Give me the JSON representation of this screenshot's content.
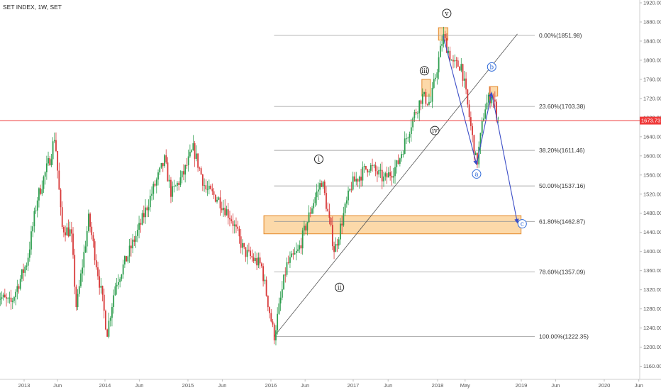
{
  "header": {
    "title": "SET INDEX, 1W, SET"
  },
  "price_tag": {
    "value": "1673.73",
    "color": "#ef3b3b"
  },
  "colors": {
    "up": "#2e9e4f",
    "down": "#d83a3a",
    "fib": "#9a9a9a",
    "trend": "#3d4fc7",
    "zone_fill": "#fbd29a",
    "zone_stroke": "#e48a2c"
  },
  "chart_data": {
    "type": "candlestick",
    "title": "SET INDEX, 1W, SET",
    "ylim": [
      1140,
      1930
    ],
    "y_ticks": [
      1160,
      1200,
      1240,
      1280,
      1320,
      1360,
      1400,
      1440,
      1480,
      1520,
      1560,
      1600,
      1640,
      1680,
      1720,
      1760,
      1800,
      1840,
      1880,
      1920
    ],
    "y_tick_labels": [
      "1160.00",
      "1200.00",
      "1240.00",
      "1280.00",
      "1320.00",
      "1360.00",
      "1400.00",
      "1440.00",
      "1480.00",
      "1520.00",
      "1560.00",
      "1600.00",
      "1640.00",
      "1680.00",
      "1720.00",
      "1760.00",
      "1800.00",
      "1840.00",
      "1880.00",
      "1920.00"
    ],
    "x_ticks": [
      {
        "label": "2013",
        "date": "2013-01-01"
      },
      {
        "label": "Jun",
        "date": "2013-06-01"
      },
      {
        "label": "2014",
        "date": "2014-01-01"
      },
      {
        "label": "Jun",
        "date": "2014-06-01"
      },
      {
        "label": "2015",
        "date": "2015-01-01"
      },
      {
        "label": "Jun",
        "date": "2015-06-01"
      },
      {
        "label": "2016",
        "date": "2016-01-01"
      },
      {
        "label": "Jun",
        "date": "2016-06-01"
      },
      {
        "label": "2017",
        "date": "2017-01-01"
      },
      {
        "label": "Jun",
        "date": "2017-06-01"
      },
      {
        "label": "2018",
        "date": "2018-01-01"
      },
      {
        "label": "May",
        "date": "2018-05-01"
      },
      {
        "label": "2019",
        "date": "2019-01-01"
      },
      {
        "label": "Jun",
        "date": "2019-06-01"
      },
      {
        "label": "2020",
        "date": "2020-01-01"
      },
      {
        "label": "Jun",
        "date": "2020-06-01"
      }
    ],
    "price_path": [
      [
        "2012-09-01",
        1310
      ],
      [
        "2012-11-01",
        1290
      ],
      [
        "2013-01-15",
        1380
      ],
      [
        "2013-03-01",
        1510
      ],
      [
        "2013-05-01",
        1600
      ],
      [
        "2013-05-20",
        1645
      ],
      [
        "2013-06-20",
        1450
      ],
      [
        "2013-08-01",
        1440
      ],
      [
        "2013-08-25",
        1280
      ],
      [
        "2013-10-20",
        1470
      ],
      [
        "2013-12-20",
        1300
      ],
      [
        "2014-01-10",
        1230
      ],
      [
        "2014-02-15",
        1330
      ],
      [
        "2014-04-10",
        1390
      ],
      [
        "2014-06-01",
        1450
      ],
      [
        "2014-08-01",
        1530
      ],
      [
        "2014-09-20",
        1590
      ],
      [
        "2014-10-20",
        1520
      ],
      [
        "2014-12-10",
        1560
      ],
      [
        "2015-01-25",
        1615
      ],
      [
        "2015-03-20",
        1530
      ],
      [
        "2015-05-15",
        1510
      ],
      [
        "2015-07-10",
        1470
      ],
      [
        "2015-09-05",
        1400
      ],
      [
        "2015-11-20",
        1370
      ],
      [
        "2016-01-15",
        1222
      ],
      [
        "2016-03-10",
        1370
      ],
      [
        "2016-05-01",
        1400
      ],
      [
        "2016-07-05",
        1500
      ],
      [
        "2016-08-15",
        1550
      ],
      [
        "2016-10-10",
        1400
      ],
      [
        "2016-11-15",
        1470
      ],
      [
        "2016-12-25",
        1540
      ],
      [
        "2017-03-10",
        1580
      ],
      [
        "2017-05-15",
        1550
      ],
      [
        "2017-07-10",
        1580
      ],
      [
        "2017-09-10",
        1670
      ],
      [
        "2017-10-25",
        1725
      ],
      [
        "2017-12-01",
        1710
      ],
      [
        "2018-01-25",
        1851
      ],
      [
        "2018-03-10",
        1790
      ],
      [
        "2018-04-15",
        1790
      ],
      [
        "2018-06-20",
        1580
      ],
      [
        "2018-07-25",
        1700
      ],
      [
        "2018-08-25",
        1730
      ],
      [
        "2018-09-25",
        1673
      ]
    ],
    "fib_levels": [
      {
        "label": "0.00%(1851.98)",
        "value": 1851.98
      },
      {
        "label": "23.60%(1703.38)",
        "value": 1703.38
      },
      {
        "label": "38.20%(1611.46)",
        "value": 1611.46
      },
      {
        "label": "50.00%(1537.16)",
        "value": 1537.16
      },
      {
        "label": "61.80%(1462.87)",
        "value": 1462.87
      },
      {
        "label": "78.60%(1357.09)",
        "value": 1357.09
      },
      {
        "label": "100.00%(1222.35)",
        "value": 1222.35
      }
    ],
    "fib_start_date": "2016-01-15",
    "fib_end_date": "2018-09-25",
    "diagonal": {
      "from": [
        "2016-01-15",
        1222.35
      ],
      "to": [
        "2018-12-15",
        1855
      ]
    },
    "zones": [
      {
        "from": [
          "2015-12-01",
          1475
        ],
        "to": [
          "2018-12-31",
          1437
        ]
      },
      {
        "from": [
          "2017-10-25",
          1760
        ],
        "to": [
          "2017-12-01",
          1725
        ]
      },
      {
        "from": [
          "2018-01-05",
          1868
        ],
        "to": [
          "2018-02-15",
          1842
        ]
      },
      {
        "from": [
          "2018-08-15",
          1745
        ],
        "to": [
          "2018-09-20",
          1725
        ]
      }
    ],
    "trend_path": [
      [
        "2018-01-25",
        1851
      ],
      [
        "2018-06-20",
        1582
      ],
      [
        "2018-08-25",
        1732
      ],
      [
        "2018-12-15",
        1460
      ]
    ],
    "waves": [
      {
        "label": "i",
        "date": "2016-08-01",
        "price": 1593,
        "color": "#222"
      },
      {
        "label": "ii",
        "date": "2016-11-01",
        "price": 1325,
        "color": "#222"
      },
      {
        "label": "iii",
        "date": "2017-11-05",
        "price": 1778,
        "color": "#222"
      },
      {
        "label": "iv",
        "date": "2017-12-20",
        "price": 1653,
        "color": "#222"
      },
      {
        "label": "v",
        "date": "2018-02-10",
        "price": 1898,
        "color": "#222"
      },
      {
        "label": "a",
        "date": "2018-06-20",
        "price": 1562,
        "color": "#2b67d8"
      },
      {
        "label": "b",
        "date": "2018-08-25",
        "price": 1786,
        "color": "#2b67d8"
      },
      {
        "label": "c",
        "date": "2019-01-05",
        "price": 1458,
        "color": "#2b67d8"
      }
    ],
    "current_price": 1673.73
  }
}
